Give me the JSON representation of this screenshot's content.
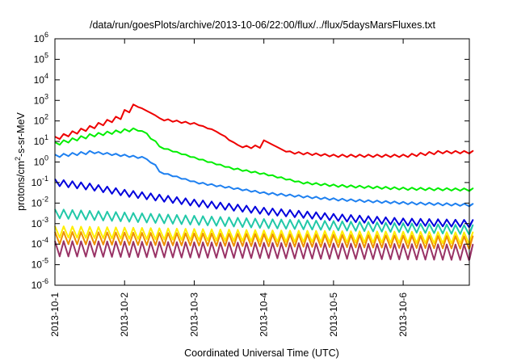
{
  "chart_data": {
    "type": "line",
    "title": "/data/run/goesPlots/archive/2013-10-06/22:00/flux/../flux/5daysMarsFluxes.txt",
    "xlabel": "Coordinated Universal Time (UTC)",
    "ylabel_prefix": "protons/cm",
    "ylabel_sup": "2",
    "ylabel_suffix": "-s-sr-MeV",
    "yscale": "log",
    "ylim": [
      1e-06,
      1000000.0
    ],
    "xlim": [
      0,
      5.95
    ],
    "xticks": [
      {
        "x": 0,
        "label": "2013-10-1"
      },
      {
        "x": 1,
        "label": "2013-10-2"
      },
      {
        "x": 2,
        "label": "2013-10-3"
      },
      {
        "x": 3,
        "label": "2013-10-4"
      },
      {
        "x": 4,
        "label": "2013-10-5"
      },
      {
        "x": 5,
        "label": "2013-10-6"
      }
    ],
    "yticks": [
      {
        "exp": -6,
        "label": "10",
        "sup": "-6"
      },
      {
        "exp": -5,
        "label": "10",
        "sup": "-5"
      },
      {
        "exp": -4,
        "label": "10",
        "sup": "-4"
      },
      {
        "exp": -3,
        "label": "10",
        "sup": "-3"
      },
      {
        "exp": -2,
        "label": "10",
        "sup": "-2"
      },
      {
        "exp": -1,
        "label": "10",
        "sup": "-1"
      },
      {
        "exp": 0,
        "label": "10",
        "sup": "0"
      },
      {
        "exp": 1,
        "label": "10",
        "sup": "1"
      },
      {
        "exp": 2,
        "label": "10",
        "sup": "2"
      },
      {
        "exp": 3,
        "label": "10",
        "sup": "3"
      },
      {
        "exp": 4,
        "label": "10",
        "sup": "4"
      },
      {
        "exp": 5,
        "label": "10",
        "sup": "5"
      },
      {
        "exp": 6,
        "label": "10",
        "sup": "6"
      }
    ],
    "grid": false,
    "series": [
      {
        "color": "#ee0000",
        "sawtooth": 0.12,
        "knots": [
          [
            0,
            15
          ],
          [
            0.5,
            50
          ],
          [
            0.9,
            150
          ],
          [
            1.1,
            600
          ],
          [
            1.3,
            300
          ],
          [
            1.5,
            120
          ],
          [
            2.0,
            70
          ],
          [
            2.3,
            30
          ],
          [
            2.6,
            6
          ],
          [
            2.85,
            5
          ],
          [
            3.0,
            10
          ],
          [
            3.3,
            3
          ],
          [
            4.0,
            2
          ],
          [
            4.5,
            2
          ],
          [
            5.0,
            2
          ],
          [
            5.5,
            3
          ],
          [
            5.95,
            3
          ]
        ]
      },
      {
        "color": "#00ee00",
        "sawtooth": 0.12,
        "knots": [
          [
            0,
            8
          ],
          [
            0.5,
            20
          ],
          [
            1.0,
            35
          ],
          [
            1.2,
            40
          ],
          [
            1.5,
            5
          ],
          [
            2.0,
            1.5
          ],
          [
            2.5,
            0.5
          ],
          [
            3.0,
            0.25
          ],
          [
            3.5,
            0.1
          ],
          [
            4.0,
            0.07
          ],
          [
            5.0,
            0.05
          ],
          [
            5.95,
            0.045
          ]
        ]
      },
      {
        "color": "#1e80f0",
        "sawtooth": 0.12,
        "knots": [
          [
            0,
            2
          ],
          [
            0.5,
            3
          ],
          [
            1.0,
            2
          ],
          [
            1.3,
            1.5
          ],
          [
            1.5,
            0.3
          ],
          [
            2.0,
            0.1
          ],
          [
            3.0,
            0.03
          ],
          [
            4.0,
            0.015
          ],
          [
            5.0,
            0.01
          ],
          [
            5.95,
            0.008
          ]
        ]
      },
      {
        "color": "#0000dd",
        "sawtooth": 0.35,
        "knots": [
          [
            0,
            0.1
          ],
          [
            0.5,
            0.06
          ],
          [
            1.0,
            0.03
          ],
          [
            2.0,
            0.01
          ],
          [
            3.0,
            0.004
          ],
          [
            4.0,
            0.002
          ],
          [
            5.0,
            0.0012
          ],
          [
            5.95,
            0.001
          ]
        ]
      },
      {
        "color": "#22c8a8",
        "sawtooth": 0.45,
        "knots": [
          [
            0,
            0.003
          ],
          [
            3.0,
            0.001
          ],
          [
            5.95,
            0.0005
          ]
        ]
      },
      {
        "color": "#ffee00",
        "sawtooth": 0.55,
        "knots": [
          [
            0,
            0.0004
          ],
          [
            3.0,
            0.00025
          ],
          [
            5.95,
            0.0002
          ]
        ]
      },
      {
        "color": "#ee9000",
        "sawtooth": 0.6,
        "knots": [
          [
            0,
            0.0002
          ],
          [
            5.95,
            0.00012
          ]
        ]
      },
      {
        "color": "#993366",
        "sawtooth": 0.75,
        "knots": [
          [
            0,
            6e-05
          ],
          [
            5.95,
            4e-05
          ]
        ]
      }
    ]
  }
}
